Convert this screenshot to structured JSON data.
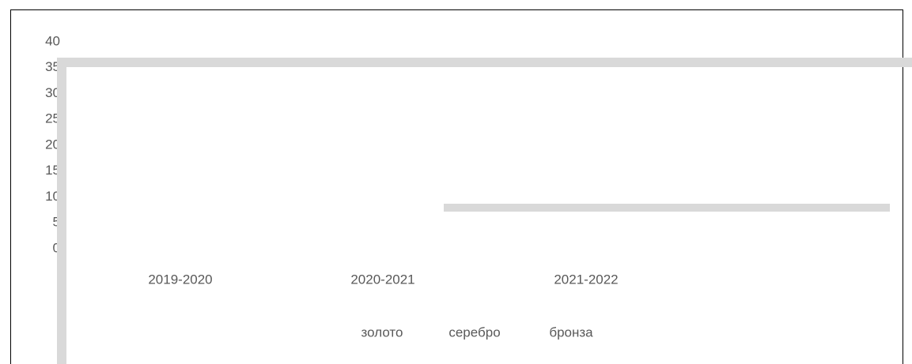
{
  "chart_data": {
    "type": "bar",
    "categories": [
      "2019-2020",
      "2020-2021",
      "2021-2022"
    ],
    "legend": [
      "золото",
      "серебро",
      "бронза"
    ],
    "ylim": [
      0,
      40
    ],
    "yticks": [
      0,
      5,
      10,
      15,
      20,
      25,
      30,
      35,
      40
    ]
  }
}
